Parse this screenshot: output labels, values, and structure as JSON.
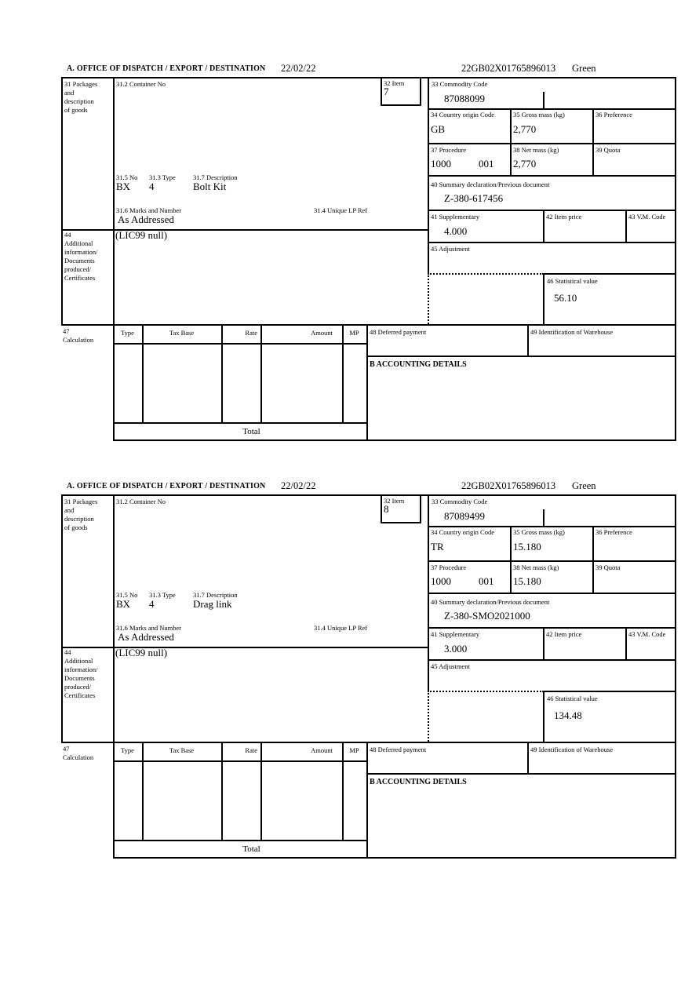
{
  "page": {
    "background": "#ffffff",
    "line_color": "#000000",
    "text_color": "#000000"
  },
  "shared": {
    "office_header": "A.  OFFICE OF DISPATCH / EXPORT / DESTINATION",
    "box31_label": "31 Packages\nand\ndescription\nof goods",
    "box31_2_label": "31.2 Container No",
    "box32_label": "32 Item",
    "box33_label": "33 Commodity Code",
    "box34_label": "34 Country origin Code",
    "box35_label": "35 Gross mass (kg)",
    "box36_label": "36 Preference",
    "box37_label": "37 Procedure",
    "box38_label": "38 Net mass (kg)",
    "box39_label": "39 Quota",
    "box40_label": "40 Summary declaration/Previous document",
    "box41_label": "41 Supplementary",
    "box42_label": "42 Item price",
    "box43_label": "43 V.M. Code",
    "box44_label": "44\nAdditional\ninformation/\nDocuments\nproduced/\nCertificates",
    "box45_label": "45 Adjustment",
    "box46_label": "46 Statistical value",
    "box47_label": "47\nCalculation",
    "box48_label": "48 Deferred payment",
    "box49_label": "49 Identification of Warehouse",
    "box31_5_label": "31.5 No",
    "box31_3_label": "31.3 Type",
    "box31_7_label": "31.7 Description",
    "box31_6_label": "31.6 Marks and Number",
    "box31_4_label": "31.4 Unique LP Ref",
    "accounting_header": "B ACCOUNTING DETAILS",
    "calc_headers": [
      "Type",
      "Tax Base",
      "Rate",
      "Amount",
      "MP"
    ],
    "total_label": "Total"
  },
  "forms": [
    {
      "date": "22/02/22",
      "reference": "22GB02X01765896013",
      "status": "Green",
      "item_number": "7",
      "commodity_code": "87088099",
      "country_origin_code": "GB",
      "gross_mass": "2,770",
      "net_mass": "2,770",
      "procedure_code": "1000",
      "procedure_code_2": "001",
      "summary_declaration": "Z-380-617456",
      "supplementary": "4.000",
      "package_no": "BX",
      "package_type": "4",
      "goods_description": "Bolt Kit",
      "marks_and_number": "As Addressed",
      "additional_information": "(LIC99 null)",
      "statistical_value": "56.10"
    },
    {
      "date": "22/02/22",
      "reference": "22GB02X01765896013",
      "status": "Green",
      "item_number": "8",
      "commodity_code": "87089499",
      "country_origin_code": "TR",
      "gross_mass": "15.180",
      "net_mass": "15.180",
      "procedure_code": "1000",
      "procedure_code_2": "001",
      "summary_declaration": "Z-380-SMO2021000",
      "supplementary": "3.000",
      "package_no": "BX",
      "package_type": "4",
      "goods_description": "Drag link",
      "marks_and_number": "As Addressed",
      "additional_information": "(LIC99 null)",
      "statistical_value": "134.48"
    }
  ]
}
